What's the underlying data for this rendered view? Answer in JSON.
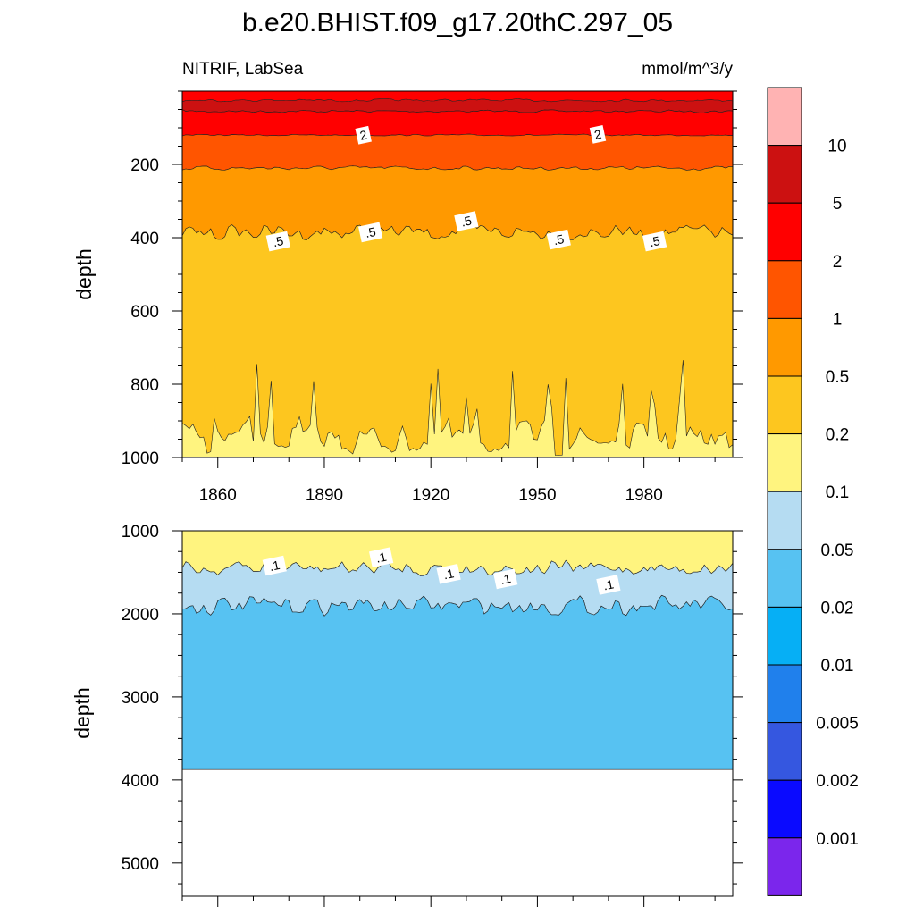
{
  "figure": {
    "title": "b.e20.BHIST.f09_g17.20thC.297_05",
    "variable_label": "NITRIF, LabSea",
    "units_label": "mmol/m^3/y"
  },
  "colorbar": {
    "levels": [
      "10",
      "5",
      "2",
      "1",
      "0.5",
      "0.2",
      "0.1",
      "0.05",
      "0.02",
      "0.01",
      "0.005",
      "0.002",
      "0.001"
    ],
    "colors": [
      "#ffb3b3",
      "#cc1111",
      "#ff0000",
      "#ff5500",
      "#ff9900",
      "#fdc61f",
      "#fff47f",
      "#b5dcf2",
      "#57c2f2",
      "#06aff5",
      "#2080ec",
      "#3557e0",
      "#0a0aff",
      "#7b26ec"
    ]
  },
  "chart_data": [
    {
      "type": "contour",
      "name": "upper",
      "ylabel": "depth",
      "xlim": [
        1850,
        2005
      ],
      "ylim": [
        1000,
        0
      ],
      "x_ticks": [
        1860,
        1890,
        1920,
        1950,
        1980
      ],
      "x_tick_labels": [
        "1860",
        "1890",
        "1920",
        "1950",
        "1980"
      ],
      "y_ticks": [
        200,
        400,
        600,
        800,
        1000
      ],
      "y_tick_labels": [
        "200",
        "400",
        "600",
        "800",
        "1000"
      ],
      "surface_depth": 5,
      "contours": [
        {
          "level": 10,
          "fill": "#cc1111",
          "upper_depth": 25,
          "lower_depth": 55,
          "wiggle": 5
        },
        {
          "level": 5,
          "fill": "#ff0000",
          "lower_depth": 120,
          "wiggle": 3
        },
        {
          "level": 2,
          "fill": "#ff5500",
          "lower_depth": 210,
          "wiggle": 8
        },
        {
          "level": 1,
          "fill": "#ff9900",
          "lower_depth": 385,
          "wiggle": 30
        },
        {
          "level": 0.5,
          "fill": "#fdc61f",
          "lower_depth": 1000,
          "wiggle": 0
        },
        {
          "level": 0.2,
          "fill": "#fff47f",
          "from_bottom": true,
          "mean_top": 950,
          "wiggle": 60
        }
      ],
      "contour_labels": [
        {
          "text": "2",
          "x": 1901,
          "y": 120
        },
        {
          "text": "2",
          "x": 1967,
          "y": 118
        },
        {
          "text": ".5",
          "x": 1877,
          "y": 410
        },
        {
          "text": ".5",
          "x": 1903,
          "y": 385
        },
        {
          "text": ".5",
          "x": 1930,
          "y": 355
        },
        {
          "text": ".5",
          "x": 1956,
          "y": 405
        },
        {
          "text": ".5",
          "x": 1983,
          "y": 410
        }
      ]
    },
    {
      "type": "contour",
      "name": "lower",
      "ylabel": "depth",
      "xlim": [
        1850,
        2005
      ],
      "ylim": [
        5400,
        1000
      ],
      "y_ticks": [
        1000,
        2000,
        3000,
        4000,
        5000
      ],
      "y_tick_labels": [
        "1000",
        "2000",
        "3000",
        "4000",
        "5000"
      ],
      "bottom_depth": 3875,
      "contours": [
        {
          "level": 0.1,
          "fill": "#fff47f",
          "lower_depth": 1450,
          "wiggle": 130
        },
        {
          "level": 0.05,
          "fill": "#b5dcf2",
          "lower_depth": 1900,
          "wiggle": 150
        },
        {
          "level": 0.02,
          "fill": "#57c2f2",
          "lower_depth": 3875,
          "wiggle": 0
        }
      ],
      "contour_labels": [
        {
          "text": ".1",
          "x": 1876,
          "y": 1420
        },
        {
          "text": ".1",
          "x": 1906,
          "y": 1320
        },
        {
          "text": ".1",
          "x": 1925,
          "y": 1520
        },
        {
          "text": ".1",
          "x": 1941,
          "y": 1580
        },
        {
          "text": ".1",
          "x": 1970,
          "y": 1650
        }
      ]
    }
  ]
}
